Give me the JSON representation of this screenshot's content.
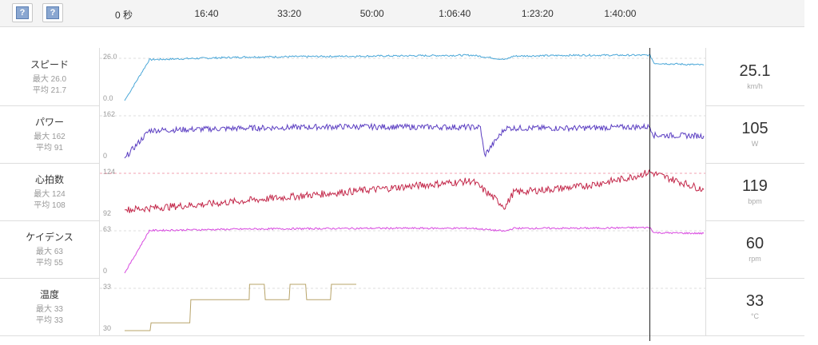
{
  "time_ticks": [
    "0 秒",
    "16:40",
    "33:20",
    "50:00",
    "1:06:40",
    "1:23:20",
    "1:40:00"
  ],
  "help_buttons": [
    "?",
    "?"
  ],
  "rows": [
    {
      "key": "speed",
      "name": "スピード",
      "max_label": "最大 26.0",
      "avg_label": "平均 21.7",
      "ymax_label": "26.0",
      "ymin_label": "0.0",
      "value": "25.1",
      "unit": "km/h",
      "color": "#4aa7d8"
    },
    {
      "key": "power",
      "name": "パワー",
      "max_label": "最大 162",
      "avg_label": "平均 91",
      "ymax_label": "162",
      "ymin_label": "0",
      "value": "105",
      "unit": "W",
      "color": "#5c3fc2"
    },
    {
      "key": "hr",
      "name": "心拍数",
      "max_label": "最大 124",
      "avg_label": "平均 108",
      "ymax_label": "124",
      "ymin_label": "92",
      "value": "119",
      "unit": "bpm",
      "color": "#c3284a"
    },
    {
      "key": "cad",
      "name": "ケイデンス",
      "max_label": "最大 63",
      "avg_label": "平均 55",
      "ymax_label": "63",
      "ymin_label": "0",
      "value": "60",
      "unit": "rpm",
      "color": "#d84ae0"
    },
    {
      "key": "temp",
      "name": "温度",
      "max_label": "最大 33",
      "avg_label": "平均 33",
      "ymax_label": "33",
      "ymin_label": "30",
      "value": "33",
      "unit": "°C",
      "color": "#b8a46a"
    }
  ],
  "chart_data": {
    "type": "line",
    "x_ticks_seconds": [
      0,
      1000,
      2000,
      3000,
      4000,
      5000,
      6000
    ],
    "x_tick_labels": [
      "0 秒",
      "16:40",
      "33:20",
      "50:00",
      "1:06:40",
      "1:23:20",
      "1:40:00"
    ],
    "xlim_seconds": [
      0,
      7000
    ],
    "cursor_seconds": 6350,
    "series": [
      {
        "name": "スピード",
        "unit": "km/h",
        "ylim": [
          0,
          26
        ],
        "x_seconds": [
          0,
          300,
          1500,
          3000,
          4200,
          4600,
          4700,
          5500,
          6350,
          6400,
          7000
        ],
        "values": [
          0,
          23,
          24.5,
          25,
          25.5,
          23,
          25,
          25.5,
          25.5,
          21,
          20
        ]
      },
      {
        "name": "パワー",
        "unit": "W",
        "ylim": [
          0,
          162
        ],
        "x_seconds": [
          0,
          300,
          1500,
          2600,
          4300,
          4350,
          4600,
          5500,
          6350,
          6400,
          7000
        ],
        "values": [
          0,
          97,
          105,
          110,
          108,
          10,
          105,
          105,
          110,
          80,
          78
        ]
      },
      {
        "name": "心拍数",
        "unit": "bpm",
        "ylim": [
          92,
          124
        ],
        "x_seconds": [
          0,
          1000,
          2000,
          3000,
          4200,
          4600,
          4700,
          5500,
          6000,
          6350,
          7000
        ],
        "values": [
          96,
          100,
          105,
          110,
          116,
          98,
          108,
          112,
          117,
          122,
          110
        ]
      },
      {
        "name": "ケイデンス",
        "unit": "rpm",
        "ylim": [
          0,
          63
        ],
        "x_seconds": [
          0,
          300,
          1500,
          3000,
          4200,
          4600,
          4700,
          5500,
          6350,
          6400,
          7000
        ],
        "values": [
          0,
          58,
          60,
          61,
          61,
          57,
          61,
          61,
          62,
          55,
          54
        ]
      },
      {
        "name": "温度",
        "unit": "°C",
        "ylim": [
          30,
          33
        ],
        "x_seconds": [
          0,
          320,
          800,
          1200,
          1500,
          1510,
          1700,
          2000,
          2200,
          2500,
          2800
        ],
        "values": [
          30,
          30.5,
          32,
          32,
          32,
          33,
          32,
          33,
          32,
          33,
          33
        ]
      }
    ]
  }
}
